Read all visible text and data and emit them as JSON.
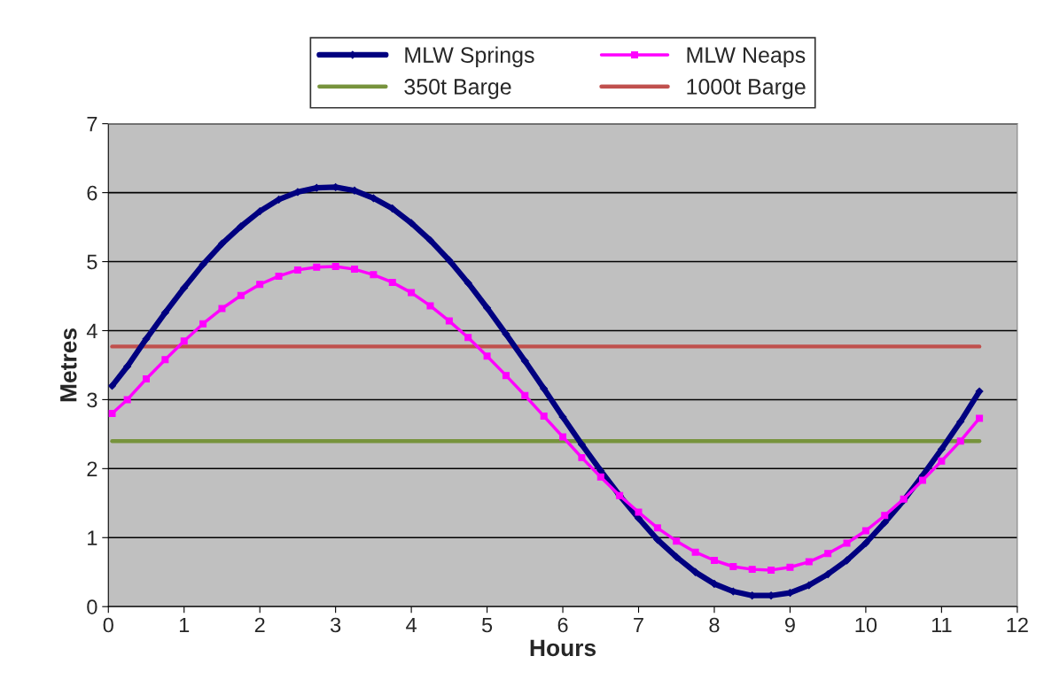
{
  "chart_data": {
    "type": "line",
    "xlabel": "Hours",
    "ylabel": "Metres",
    "xlim": [
      0,
      12
    ],
    "ylim": [
      0,
      7
    ],
    "xticks": [
      0,
      1,
      2,
      3,
      4,
      5,
      6,
      7,
      8,
      9,
      10,
      11,
      12
    ],
    "yticks": [
      0,
      1,
      2,
      3,
      4,
      5,
      6,
      7
    ],
    "grid": "y",
    "legend": "top",
    "series": [
      {
        "name": "MLW Springs",
        "color": "#000080",
        "marker": "diamond",
        "x": [
          0.05,
          0.25,
          0.5,
          0.75,
          1.0,
          1.25,
          1.5,
          1.75,
          2.0,
          2.25,
          2.5,
          2.75,
          3.0,
          3.25,
          3.5,
          3.75,
          4.0,
          4.25,
          4.5,
          4.75,
          5.0,
          5.25,
          5.5,
          5.75,
          6.0,
          6.25,
          6.5,
          6.75,
          7.0,
          7.25,
          7.5,
          7.75,
          8.0,
          8.25,
          8.5,
          8.75,
          9.0,
          9.25,
          9.5,
          9.75,
          10.0,
          10.25,
          10.5,
          10.75,
          11.0,
          11.25,
          11.5
        ],
        "values": [
          3.2,
          3.48,
          3.88,
          4.26,
          4.62,
          4.96,
          5.26,
          5.51,
          5.73,
          5.9,
          6.01,
          6.07,
          6.08,
          6.03,
          5.92,
          5.77,
          5.56,
          5.31,
          5.02,
          4.69,
          4.33,
          3.95,
          3.56,
          3.16,
          2.75,
          2.35,
          1.97,
          1.61,
          1.28,
          0.97,
          0.72,
          0.5,
          0.33,
          0.22,
          0.16,
          0.16,
          0.2,
          0.31,
          0.47,
          0.67,
          0.92,
          1.22,
          1.54,
          1.9,
          2.28,
          2.68,
          3.12
        ]
      },
      {
        "name": "MLW Neaps",
        "color": "#ff00ff",
        "marker": "square",
        "x": [
          0.05,
          0.25,
          0.5,
          0.75,
          1.0,
          1.25,
          1.5,
          1.75,
          2.0,
          2.25,
          2.5,
          2.75,
          3.0,
          3.25,
          3.5,
          3.75,
          4.0,
          4.25,
          4.5,
          4.75,
          5.0,
          5.25,
          5.5,
          5.75,
          6.0,
          6.25,
          6.5,
          6.75,
          7.0,
          7.25,
          7.5,
          7.75,
          8.0,
          8.25,
          8.5,
          8.75,
          9.0,
          9.25,
          9.5,
          9.75,
          10.0,
          10.25,
          10.5,
          10.75,
          11.0,
          11.25,
          11.5
        ],
        "values": [
          2.8,
          3.0,
          3.3,
          3.58,
          3.85,
          4.1,
          4.32,
          4.51,
          4.67,
          4.79,
          4.88,
          4.92,
          4.93,
          4.89,
          4.81,
          4.7,
          4.55,
          4.36,
          4.14,
          3.9,
          3.63,
          3.35,
          3.06,
          2.76,
          2.46,
          2.16,
          1.88,
          1.61,
          1.37,
          1.14,
          0.95,
          0.79,
          0.67,
          0.58,
          0.54,
          0.53,
          0.57,
          0.65,
          0.77,
          0.92,
          1.1,
          1.32,
          1.56,
          1.83,
          2.11,
          2.4,
          2.73
        ]
      },
      {
        "name": "350t Barge",
        "color": "#77933c",
        "marker": "none",
        "x": [
          0.05,
          11.5
        ],
        "values": [
          2.4,
          2.4
        ]
      },
      {
        "name": "1000t Barge",
        "color": "#c0504d",
        "marker": "none",
        "x": [
          0.05,
          11.5
        ],
        "values": [
          3.77,
          3.77
        ]
      }
    ]
  }
}
